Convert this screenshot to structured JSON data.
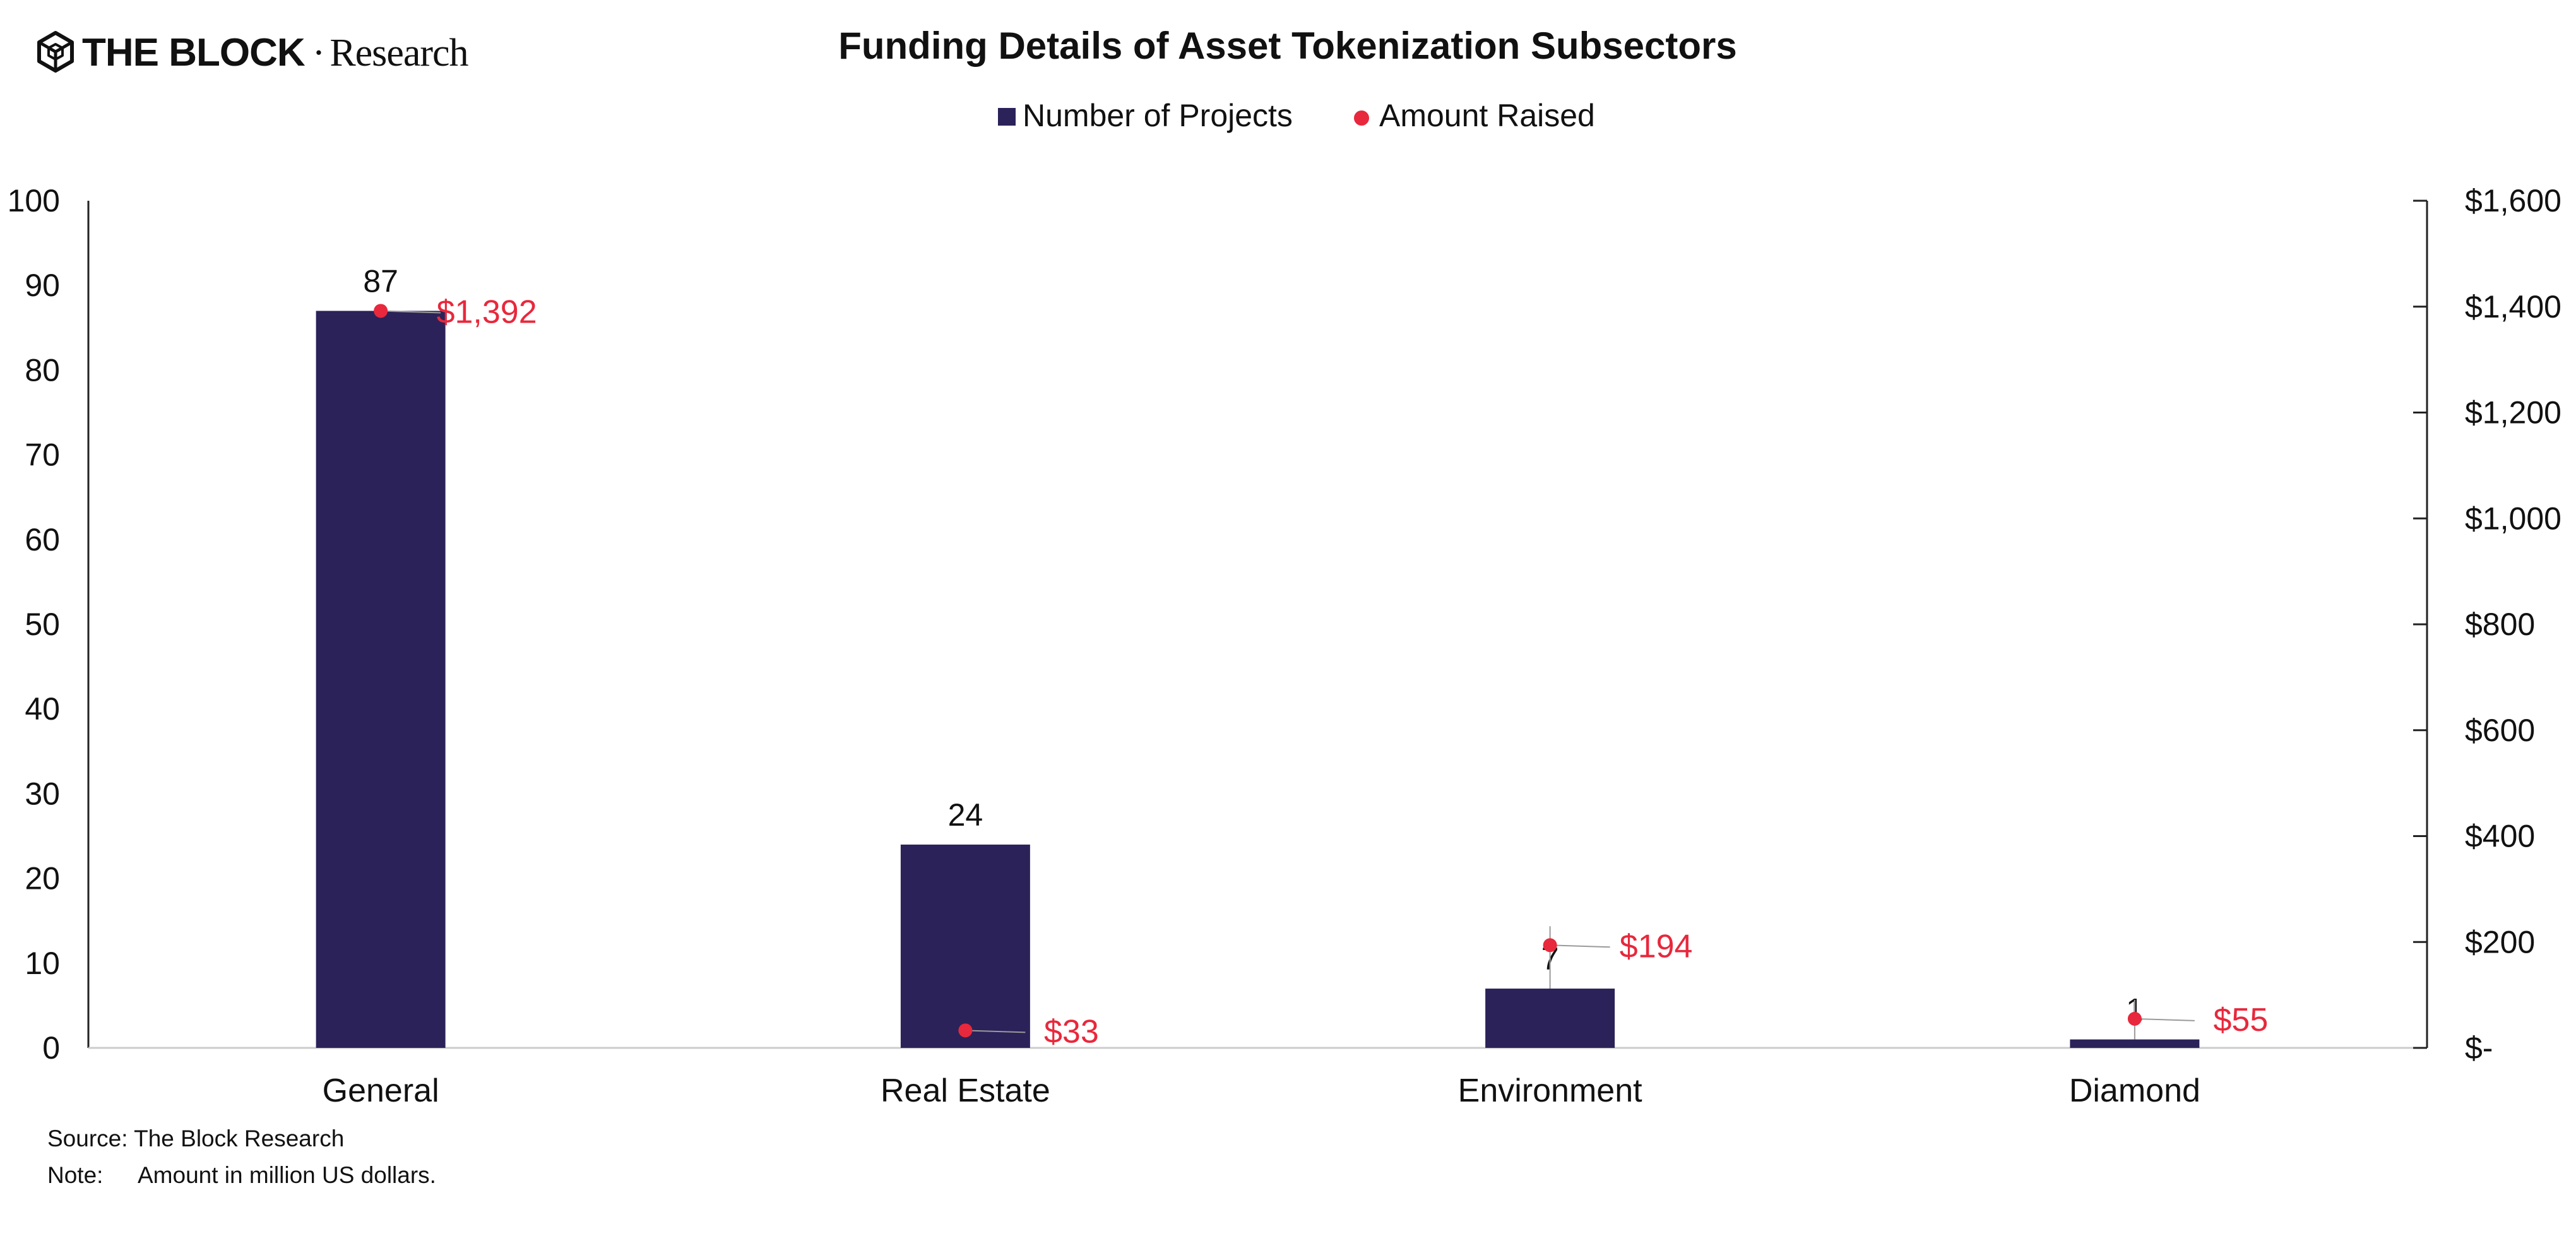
{
  "brand": {
    "logo_name": "cube-logo-icon",
    "wordmark": "THE BLOCK",
    "separator": "·",
    "sub": "Research"
  },
  "colors": {
    "bar": "#2b2259",
    "point": "#e8283c",
    "axis": "#222222",
    "leader": "#9a9a9a",
    "baseline": "#cccccc"
  },
  "chart_data": {
    "type": "bar",
    "title": "Funding Details of Asset Tokenization Subsectors",
    "categories": [
      "General",
      "Real Estate",
      "Environment",
      "Diamond"
    ],
    "series": [
      {
        "name": "Number of Projects",
        "type": "bar",
        "axis": "left",
        "values": [
          87,
          24,
          7,
          1
        ],
        "labels": [
          "87",
          "24",
          "7",
          "1"
        ]
      },
      {
        "name": "Amount Raised",
        "type": "scatter",
        "axis": "right",
        "values": [
          1392,
          33,
          194,
          55
        ],
        "labels": [
          "$1,392",
          "$33",
          "$194",
          "$55"
        ]
      }
    ],
    "y_left": {
      "range": [
        0,
        100
      ],
      "ticks": [
        "0",
        "10",
        "20",
        "30",
        "40",
        "50",
        "60",
        "70",
        "80",
        "90",
        "100"
      ]
    },
    "y_right": {
      "range": [
        0,
        1600
      ],
      "ticks": [
        "$-",
        "$200",
        "$400",
        "$600",
        "$800",
        "$1,000",
        "$1,200",
        "$1,400",
        "$1,600"
      ]
    },
    "legend_position": "top-center",
    "grid": false
  },
  "footer": {
    "source": "Source: The Block Research",
    "note_label": "Note:",
    "note_text": "Amount in million US dollars."
  }
}
